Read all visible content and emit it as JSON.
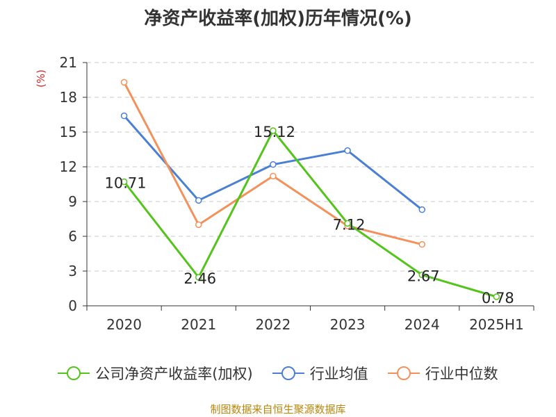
{
  "chart_data": {
    "type": "line",
    "title": "净资产收益率(加权)历年情况(%)",
    "unit_label": "(%)",
    "categories": [
      "2020",
      "2021",
      "2022",
      "2023",
      "2024",
      "2025H1"
    ],
    "ylim": [
      0,
      21
    ],
    "yticks": [
      0,
      3,
      6,
      9,
      12,
      15,
      18,
      21
    ],
    "grid": true,
    "legend_position": "bottom",
    "series": [
      {
        "name": "公司净资产收益率(加权)",
        "color": "#52c41a",
        "values": [
          10.71,
          2.46,
          15.12,
          7.12,
          2.67,
          0.78
        ],
        "data_labels": [
          "10.71",
          "2.46",
          "15.12",
          "7.12",
          "2.67",
          "0.78"
        ]
      },
      {
        "name": "行业均值",
        "color": "#4a7fd4",
        "values": [
          16.4,
          9.1,
          12.2,
          13.4,
          8.3,
          null
        ]
      },
      {
        "name": "行业中位数",
        "color": "#f4915a",
        "values": [
          19.3,
          7.0,
          11.2,
          6.9,
          5.3,
          null
        ]
      }
    ]
  },
  "source_note": "制图数据来自恒生聚源数据库"
}
